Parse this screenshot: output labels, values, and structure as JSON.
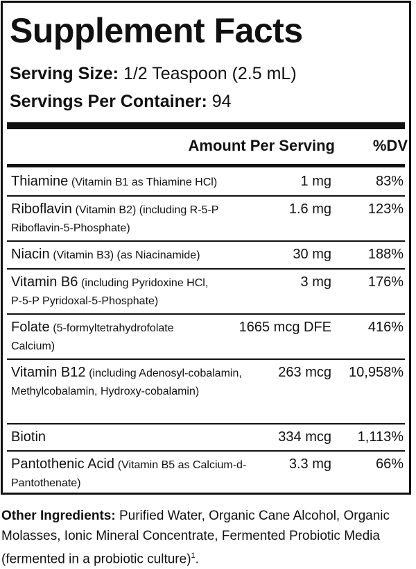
{
  "title": "Supplement Facts",
  "serving_size": {
    "label": "Serving Size:",
    "value": "1/2 Teaspoon (2.5 mL)"
  },
  "servings_per_container": {
    "label": "Servings Per Container:",
    "value": "94"
  },
  "header": {
    "amount": "Amount Per Serving",
    "dv": "%DV"
  },
  "rows": [
    {
      "name": "Thiamine",
      "detail": "(Vitamin B1 as Thiamine HCl)",
      "amount": "1 mg",
      "dv": "83%"
    },
    {
      "name": "Riboflavin",
      "detail": "(Vitamin B2) (including R-5-P Riboflavin-5-Phosphate)",
      "amount": "1.6 mg",
      "dv": "123%"
    },
    {
      "name": "Niacin",
      "detail": "(Vitamin B3) (as Niacinamide)",
      "amount": "30 mg",
      "dv": "188%"
    },
    {
      "name": "Vitamin B6",
      "detail": "(including Pyridoxine HCl, P-5-P Pyridoxal-5-Phosphate)",
      "amount": "3 mg",
      "dv": "176%"
    },
    {
      "name": "Folate",
      "detail": "(5-formyltetrahydrofolate Calcium)",
      "amount": "1665 mcg DFE",
      "dv": "416%"
    },
    {
      "name": "Vitamin B12",
      "detail": "(including Adenosyl-cobalamin, Methylcobalamin, Hydroxy-cobalamin)",
      "amount": "263 mcg",
      "dv": "10,958%"
    },
    {
      "name": "Biotin",
      "detail": "",
      "amount": "334 mcg",
      "dv": "1,113%"
    },
    {
      "name": "Pantothenic Acid",
      "detail": "(Vitamin B5 as Calcium-d-Pantothenate)",
      "amount": "3.3 mg",
      "dv": "66%"
    }
  ],
  "other_ingredients": {
    "label": "Other Ingredients:",
    "text": "Purified Water, Organic Cane Alcohol, Organic Molasses, Ionic Mineral Concentrate, Fermented Probiotic Media (fermented in a probiotic culture)",
    "footnote": "1",
    "end": "."
  }
}
